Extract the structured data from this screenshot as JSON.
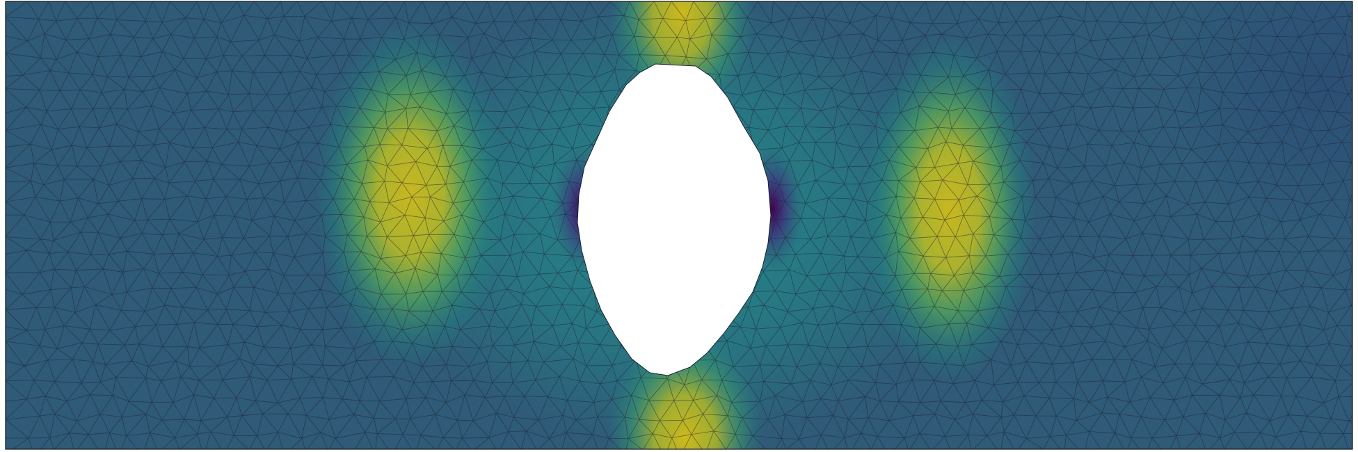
{
  "figure": {
    "kind": "finite-element stress contour plot on a triangular mesh",
    "colormap": "viridis",
    "colors": {
      "low": "#440154",
      "mid_low": "#31688e",
      "mid": "#21918c",
      "mid_high": "#5ec962",
      "high": "#c8b81e",
      "background": "#2f5a78",
      "mesh_edge": "#1b2233",
      "hole_fill": "#ffffff",
      "page": "#ffffff"
    },
    "mesh": {
      "element_type": "triangle",
      "edges_visible": true
    }
  }
}
